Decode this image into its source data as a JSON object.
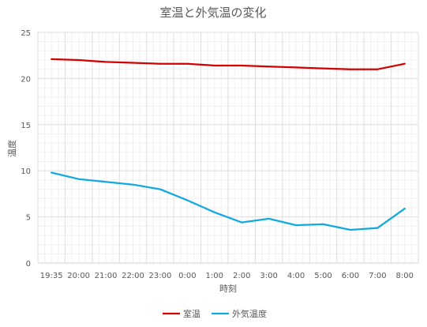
{
  "chart_data": {
    "type": "line",
    "title": "室温と外気温の変化",
    "xlabel": "時刻",
    "ylabel": "温度",
    "categories": [
      "19:35",
      "20:00",
      "21:00",
      "22:00",
      "23:00",
      "0:00",
      "1:00",
      "2:00",
      "3:00",
      "4:00",
      "5:00",
      "6:00",
      "7:00",
      "8:00"
    ],
    "ylim": [
      0,
      25
    ],
    "yticks": [
      0,
      5,
      10,
      15,
      20,
      25
    ],
    "minor_grid_step": 1,
    "grid": true,
    "legend_position": "bottom",
    "series": [
      {
        "name": "室温",
        "color": "#d40000",
        "values": [
          22.1,
          22.0,
          21.8,
          21.7,
          21.6,
          21.6,
          21.4,
          21.4,
          21.3,
          21.2,
          21.1,
          21.0,
          21.0,
          21.6
        ]
      },
      {
        "name": "外気温度",
        "color": "#12a8e0",
        "values": [
          9.8,
          9.1,
          8.8,
          8.5,
          8.0,
          6.8,
          5.5,
          4.4,
          4.8,
          4.1,
          4.2,
          3.6,
          3.8,
          5.9
        ]
      }
    ]
  }
}
